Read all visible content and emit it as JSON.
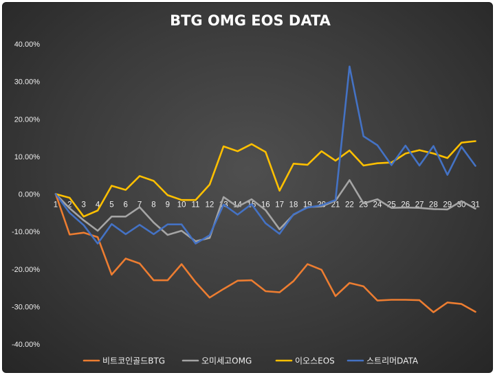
{
  "chart_data": {
    "type": "line",
    "title": "BTG OMG EOS DATA",
    "xlabel": "",
    "ylabel": "",
    "x": [
      1,
      2,
      3,
      4,
      5,
      6,
      7,
      8,
      9,
      10,
      11,
      12,
      13,
      14,
      15,
      16,
      17,
      18,
      19,
      20,
      21,
      22,
      23,
      24,
      25,
      26,
      27,
      28,
      29,
      30,
      31
    ],
    "ylim": [
      -40,
      40
    ],
    "ytick_values": [
      40,
      30,
      20,
      10,
      0,
      -10,
      -20,
      -30,
      -40
    ],
    "ytick_labels": [
      "40.00%",
      "30.00%",
      "20.00%",
      "10.00%",
      "0.00%",
      "-10.00%",
      "-20.00%",
      "-30.00%",
      "-40.00%"
    ],
    "grid": false,
    "legend_position": "bottom",
    "series": [
      {
        "name": "비트코인골드BTG",
        "color": "#ed7d31",
        "values": [
          0,
          -10.8,
          -10.3,
          -11.5,
          -21.5,
          -17.2,
          -18.5,
          -23.0,
          -23.0,
          -18.7,
          -23.5,
          -27.6,
          -25.3,
          -23.1,
          -23.0,
          -25.9,
          -26.2,
          -23.2,
          -18.7,
          -20.2,
          -27.2,
          -23.7,
          -24.6,
          -28.4,
          -28.2,
          -28.2,
          -28.3,
          -31.5,
          -28.9,
          -29.3,
          -31.4
        ]
      },
      {
        "name": "오미세고OMG",
        "color": "#a5a5a5",
        "values": [
          0,
          -3.8,
          -7.0,
          -9.8,
          -6.0,
          -6.0,
          -3.5,
          -7.6,
          -10.9,
          -9.8,
          -12.6,
          -11.7,
          -0.8,
          -3.4,
          -1.4,
          -4.3,
          -9.4,
          -5.5,
          -3.5,
          -3.3,
          -1.8,
          3.7,
          -2.5,
          -1.4,
          -3.7,
          -3.6,
          -3.7,
          -4.0,
          -4.1,
          -1.9,
          -3.9
        ]
      },
      {
        "name": "이오스EOS",
        "color": "#ffc000",
        "values": [
          0,
          -1.0,
          -6.0,
          -4.4,
          2.2,
          1.1,
          4.8,
          3.5,
          -0.3,
          -1.6,
          -1.6,
          2.5,
          12.7,
          11.4,
          13.3,
          11.2,
          0.9,
          8.1,
          7.8,
          11.4,
          8.9,
          11.6,
          7.6,
          8.2,
          8.4,
          10.8,
          11.7,
          10.8,
          9.6,
          13.7,
          14.1
        ]
      },
      {
        "name": "스트리머DATA",
        "color": "#4472c4",
        "values": [
          0,
          -5.0,
          -8.3,
          -13.2,
          -8.0,
          -10.7,
          -8.2,
          -10.7,
          -8.1,
          -8.1,
          -13.2,
          -11.0,
          -2.8,
          -5.5,
          -2.7,
          -7.8,
          -10.6,
          -5.4,
          -3.6,
          -3.0,
          -1.6,
          34.0,
          15.4,
          13.0,
          7.7,
          12.9,
          7.6,
          12.8,
          5.1,
          12.6,
          7.5
        ]
      }
    ]
  }
}
